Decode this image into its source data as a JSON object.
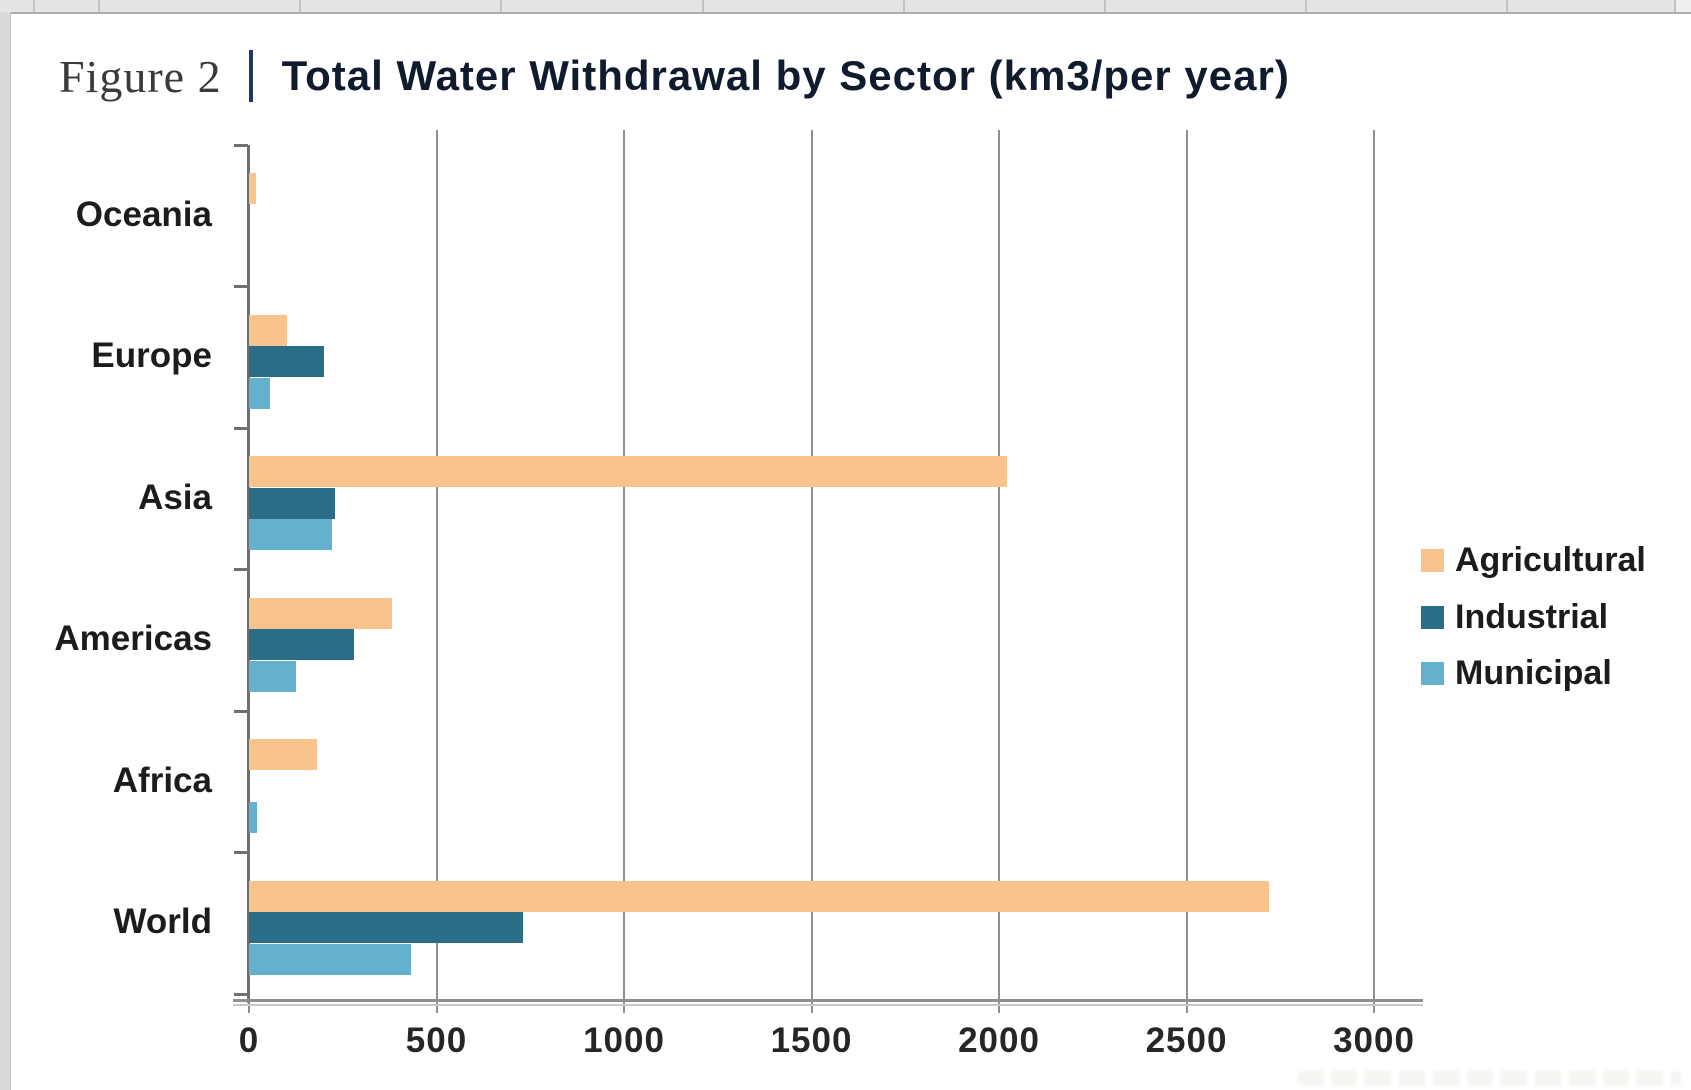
{
  "page": {
    "figure_label": "Figure 2",
    "title": "Total Water Withdrawal by Sector (km3/per year)"
  },
  "chart_data": {
    "type": "bar",
    "orientation": "horizontal",
    "title": "Total Water Withdrawal by Sector (km3/per year)",
    "unit": "km3/per year",
    "categories": [
      "Oceania",
      "Europe",
      "Asia",
      "Americas",
      "Africa",
      "World"
    ],
    "series": [
      {
        "name": "Agricultural",
        "color": "#F9C38C",
        "values": [
          18,
          100,
          2020,
          380,
          180,
          2720
        ]
      },
      {
        "name": "Industrial",
        "color": "#2B6C88",
        "values": [
          0,
          200,
          230,
          280,
          0,
          730
        ]
      },
      {
        "name": "Municipal",
        "color": "#63B1CE",
        "values": [
          0,
          57,
          220,
          125,
          22,
          433
        ]
      }
    ],
    "x_ticks": [
      0,
      500,
      1000,
      1500,
      2000,
      2500,
      3000
    ],
    "xlim": [
      0,
      3000
    ],
    "grid": true,
    "legend_position": "right"
  }
}
